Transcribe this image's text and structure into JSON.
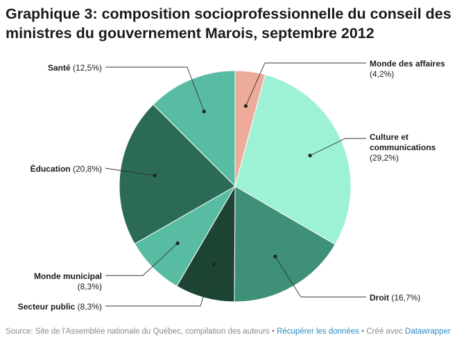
{
  "title": "Graphique 3: composition socioprofessionnelle du conseil des ministres du gouvernement Marois, septembre 2012",
  "chart_data": {
    "type": "pie",
    "slices": [
      {
        "name": "Monde des affaires",
        "value": 4.2,
        "value_label": "(4,2%)",
        "color": "#eeab99"
      },
      {
        "name": "Culture et communications",
        "value": 29.2,
        "value_label": "(29,2%)",
        "color": "#9df1d4"
      },
      {
        "name": "Droit",
        "value": 16.7,
        "value_label": "(16,7%)",
        "color": "#3e9078"
      },
      {
        "name": "Secteur public",
        "value": 8.3,
        "value_label": "(8,3%)",
        "color": "#1d4433"
      },
      {
        "name": "Monde municipal",
        "value": 8.3,
        "value_label": "(8,3%)",
        "color": "#58bca3"
      },
      {
        "name": "Éducation",
        "value": 20.8,
        "value_label": "(20,8%)",
        "color": "#2b6a55"
      },
      {
        "name": "Santé",
        "value": 12.5,
        "value_label": "(12,5%)",
        "color": "#58bca3"
      }
    ]
  },
  "footer": {
    "source": "Source: Site de l'Assemblée nationale du Québec, compilation des auteurs",
    "separator": " • ",
    "download_link": "Récupérer les données",
    "created_with": "Créé avec ",
    "tool_link": "Datawrapper"
  }
}
